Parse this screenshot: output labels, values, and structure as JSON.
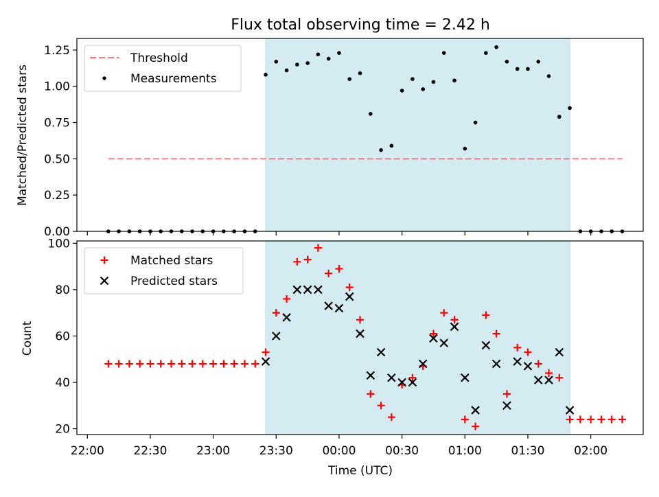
{
  "chart_data": [
    {
      "type": "scatter",
      "title": "Flux total observing time = 2.42 h",
      "xlabel": "",
      "ylabel": "Matched/Predicted stars",
      "ylim": [
        0,
        1.33
      ],
      "yticks": [
        "0.00",
        "0.25",
        "0.50",
        "0.75",
        "1.00",
        "1.25"
      ],
      "shaded_interval": [
        "23:25",
        "01:50"
      ],
      "shade_color": "#d4ebf2",
      "legend_position": "upper-left",
      "threshold": {
        "name": "Threshold",
        "value": 0.5,
        "x_start": "22:10",
        "x_end": "02:15",
        "color": "#ff7777"
      },
      "series": [
        {
          "name": "Measurements",
          "color": "#000000",
          "marker": "dot",
          "points": [
            [
              "22:10",
              0
            ],
            [
              "22:15",
              0
            ],
            [
              "22:20",
              0
            ],
            [
              "22:25",
              0
            ],
            [
              "22:30",
              0
            ],
            [
              "22:35",
              0
            ],
            [
              "22:40",
              0
            ],
            [
              "22:45",
              0
            ],
            [
              "22:50",
              0
            ],
            [
              "22:55",
              0
            ],
            [
              "23:00",
              0
            ],
            [
              "23:05",
              0
            ],
            [
              "23:10",
              0
            ],
            [
              "23:15",
              0
            ],
            [
              "23:20",
              0
            ],
            [
              "23:25",
              1.08
            ],
            [
              "23:30",
              1.17
            ],
            [
              "23:35",
              1.11
            ],
            [
              "23:40",
              1.15
            ],
            [
              "23:45",
              1.16
            ],
            [
              "23:50",
              1.22
            ],
            [
              "23:55",
              1.19
            ],
            [
              "00:00",
              1.23
            ],
            [
              "00:05",
              1.05
            ],
            [
              "00:10",
              1.09
            ],
            [
              "00:15",
              0.81
            ],
            [
              "00:20",
              0.56
            ],
            [
              "00:25",
              0.59
            ],
            [
              "00:30",
              0.97
            ],
            [
              "00:35",
              1.05
            ],
            [
              "00:40",
              0.98
            ],
            [
              "00:45",
              1.03
            ],
            [
              "00:50",
              1.23
            ],
            [
              "00:55",
              1.04
            ],
            [
              "01:00",
              0.57
            ],
            [
              "01:05",
              0.75
            ],
            [
              "01:10",
              1.23
            ],
            [
              "01:15",
              1.27
            ],
            [
              "01:20",
              1.17
            ],
            [
              "01:25",
              1.12
            ],
            [
              "01:30",
              1.12
            ],
            [
              "01:35",
              1.17
            ],
            [
              "01:40",
              1.07
            ],
            [
              "01:45",
              0.79
            ],
            [
              "01:50",
              0.85
            ],
            [
              "01:55",
              0
            ],
            [
              "02:00",
              0
            ],
            [
              "02:05",
              0
            ],
            [
              "02:10",
              0
            ],
            [
              "02:15",
              0
            ]
          ]
        }
      ]
    },
    {
      "type": "scatter",
      "title": "",
      "xlabel": "Time (UTC)",
      "ylabel": "Count",
      "ylim": [
        17.5,
        101
      ],
      "yticks": [
        "20",
        "40",
        "60",
        "80",
        "100"
      ],
      "xticks": [
        "22:00",
        "22:30",
        "23:00",
        "23:30",
        "00:00",
        "00:30",
        "01:00",
        "01:30",
        "02:00"
      ],
      "xlim": [
        "21:55",
        "02:25"
      ],
      "shaded_interval": [
        "23:25",
        "01:50"
      ],
      "shade_color": "#d4ebf2",
      "legend_position": "upper-left",
      "series": [
        {
          "name": "Matched stars",
          "color": "#ff0000",
          "marker": "plus",
          "points": [
            [
              "22:10",
              48
            ],
            [
              "22:15",
              48
            ],
            [
              "22:20",
              48
            ],
            [
              "22:25",
              48
            ],
            [
              "22:30",
              48
            ],
            [
              "22:35",
              48
            ],
            [
              "22:40",
              48
            ],
            [
              "22:45",
              48
            ],
            [
              "22:50",
              48
            ],
            [
              "22:55",
              48
            ],
            [
              "23:00",
              48
            ],
            [
              "23:05",
              48
            ],
            [
              "23:10",
              48
            ],
            [
              "23:15",
              48
            ],
            [
              "23:20",
              48
            ],
            [
              "23:25",
              53
            ],
            [
              "23:30",
              70
            ],
            [
              "23:35",
              76
            ],
            [
              "23:40",
              92
            ],
            [
              "23:45",
              93
            ],
            [
              "23:50",
              98
            ],
            [
              "23:55",
              87
            ],
            [
              "00:00",
              89
            ],
            [
              "00:05",
              81
            ],
            [
              "00:10",
              67
            ],
            [
              "00:15",
              35
            ],
            [
              "00:20",
              30
            ],
            [
              "00:25",
              25
            ],
            [
              "00:30",
              39
            ],
            [
              "00:35",
              42
            ],
            [
              "00:40",
              47
            ],
            [
              "00:45",
              61
            ],
            [
              "00:50",
              70
            ],
            [
              "00:55",
              67
            ],
            [
              "01:00",
              24
            ],
            [
              "01:05",
              21
            ],
            [
              "01:10",
              69
            ],
            [
              "01:15",
              61
            ],
            [
              "01:20",
              35
            ],
            [
              "01:25",
              55
            ],
            [
              "01:30",
              53
            ],
            [
              "01:35",
              48
            ],
            [
              "01:40",
              44
            ],
            [
              "01:45",
              42
            ],
            [
              "01:50",
              24
            ],
            [
              "01:55",
              24
            ],
            [
              "02:00",
              24
            ],
            [
              "02:05",
              24
            ],
            [
              "02:10",
              24
            ],
            [
              "02:15",
              24
            ]
          ]
        },
        {
          "name": "Predicted stars",
          "color": "#000000",
          "marker": "x",
          "points": [
            [
              "23:25",
              49
            ],
            [
              "23:30",
              60
            ],
            [
              "23:35",
              68
            ],
            [
              "23:40",
              80
            ],
            [
              "23:45",
              80
            ],
            [
              "23:50",
              80
            ],
            [
              "23:55",
              73
            ],
            [
              "00:00",
              72
            ],
            [
              "00:05",
              77
            ],
            [
              "00:10",
              61
            ],
            [
              "00:15",
              43
            ],
            [
              "00:20",
              53
            ],
            [
              "00:25",
              42
            ],
            [
              "00:30",
              40
            ],
            [
              "00:35",
              40
            ],
            [
              "00:40",
              48
            ],
            [
              "00:45",
              59
            ],
            [
              "00:50",
              57
            ],
            [
              "00:55",
              64
            ],
            [
              "01:00",
              42
            ],
            [
              "01:05",
              28
            ],
            [
              "01:10",
              56
            ],
            [
              "01:15",
              48
            ],
            [
              "01:20",
              30
            ],
            [
              "01:25",
              49
            ],
            [
              "01:30",
              47
            ],
            [
              "01:35",
              41
            ],
            [
              "01:40",
              41
            ],
            [
              "01:45",
              53
            ],
            [
              "01:50",
              28
            ]
          ]
        }
      ]
    }
  ]
}
